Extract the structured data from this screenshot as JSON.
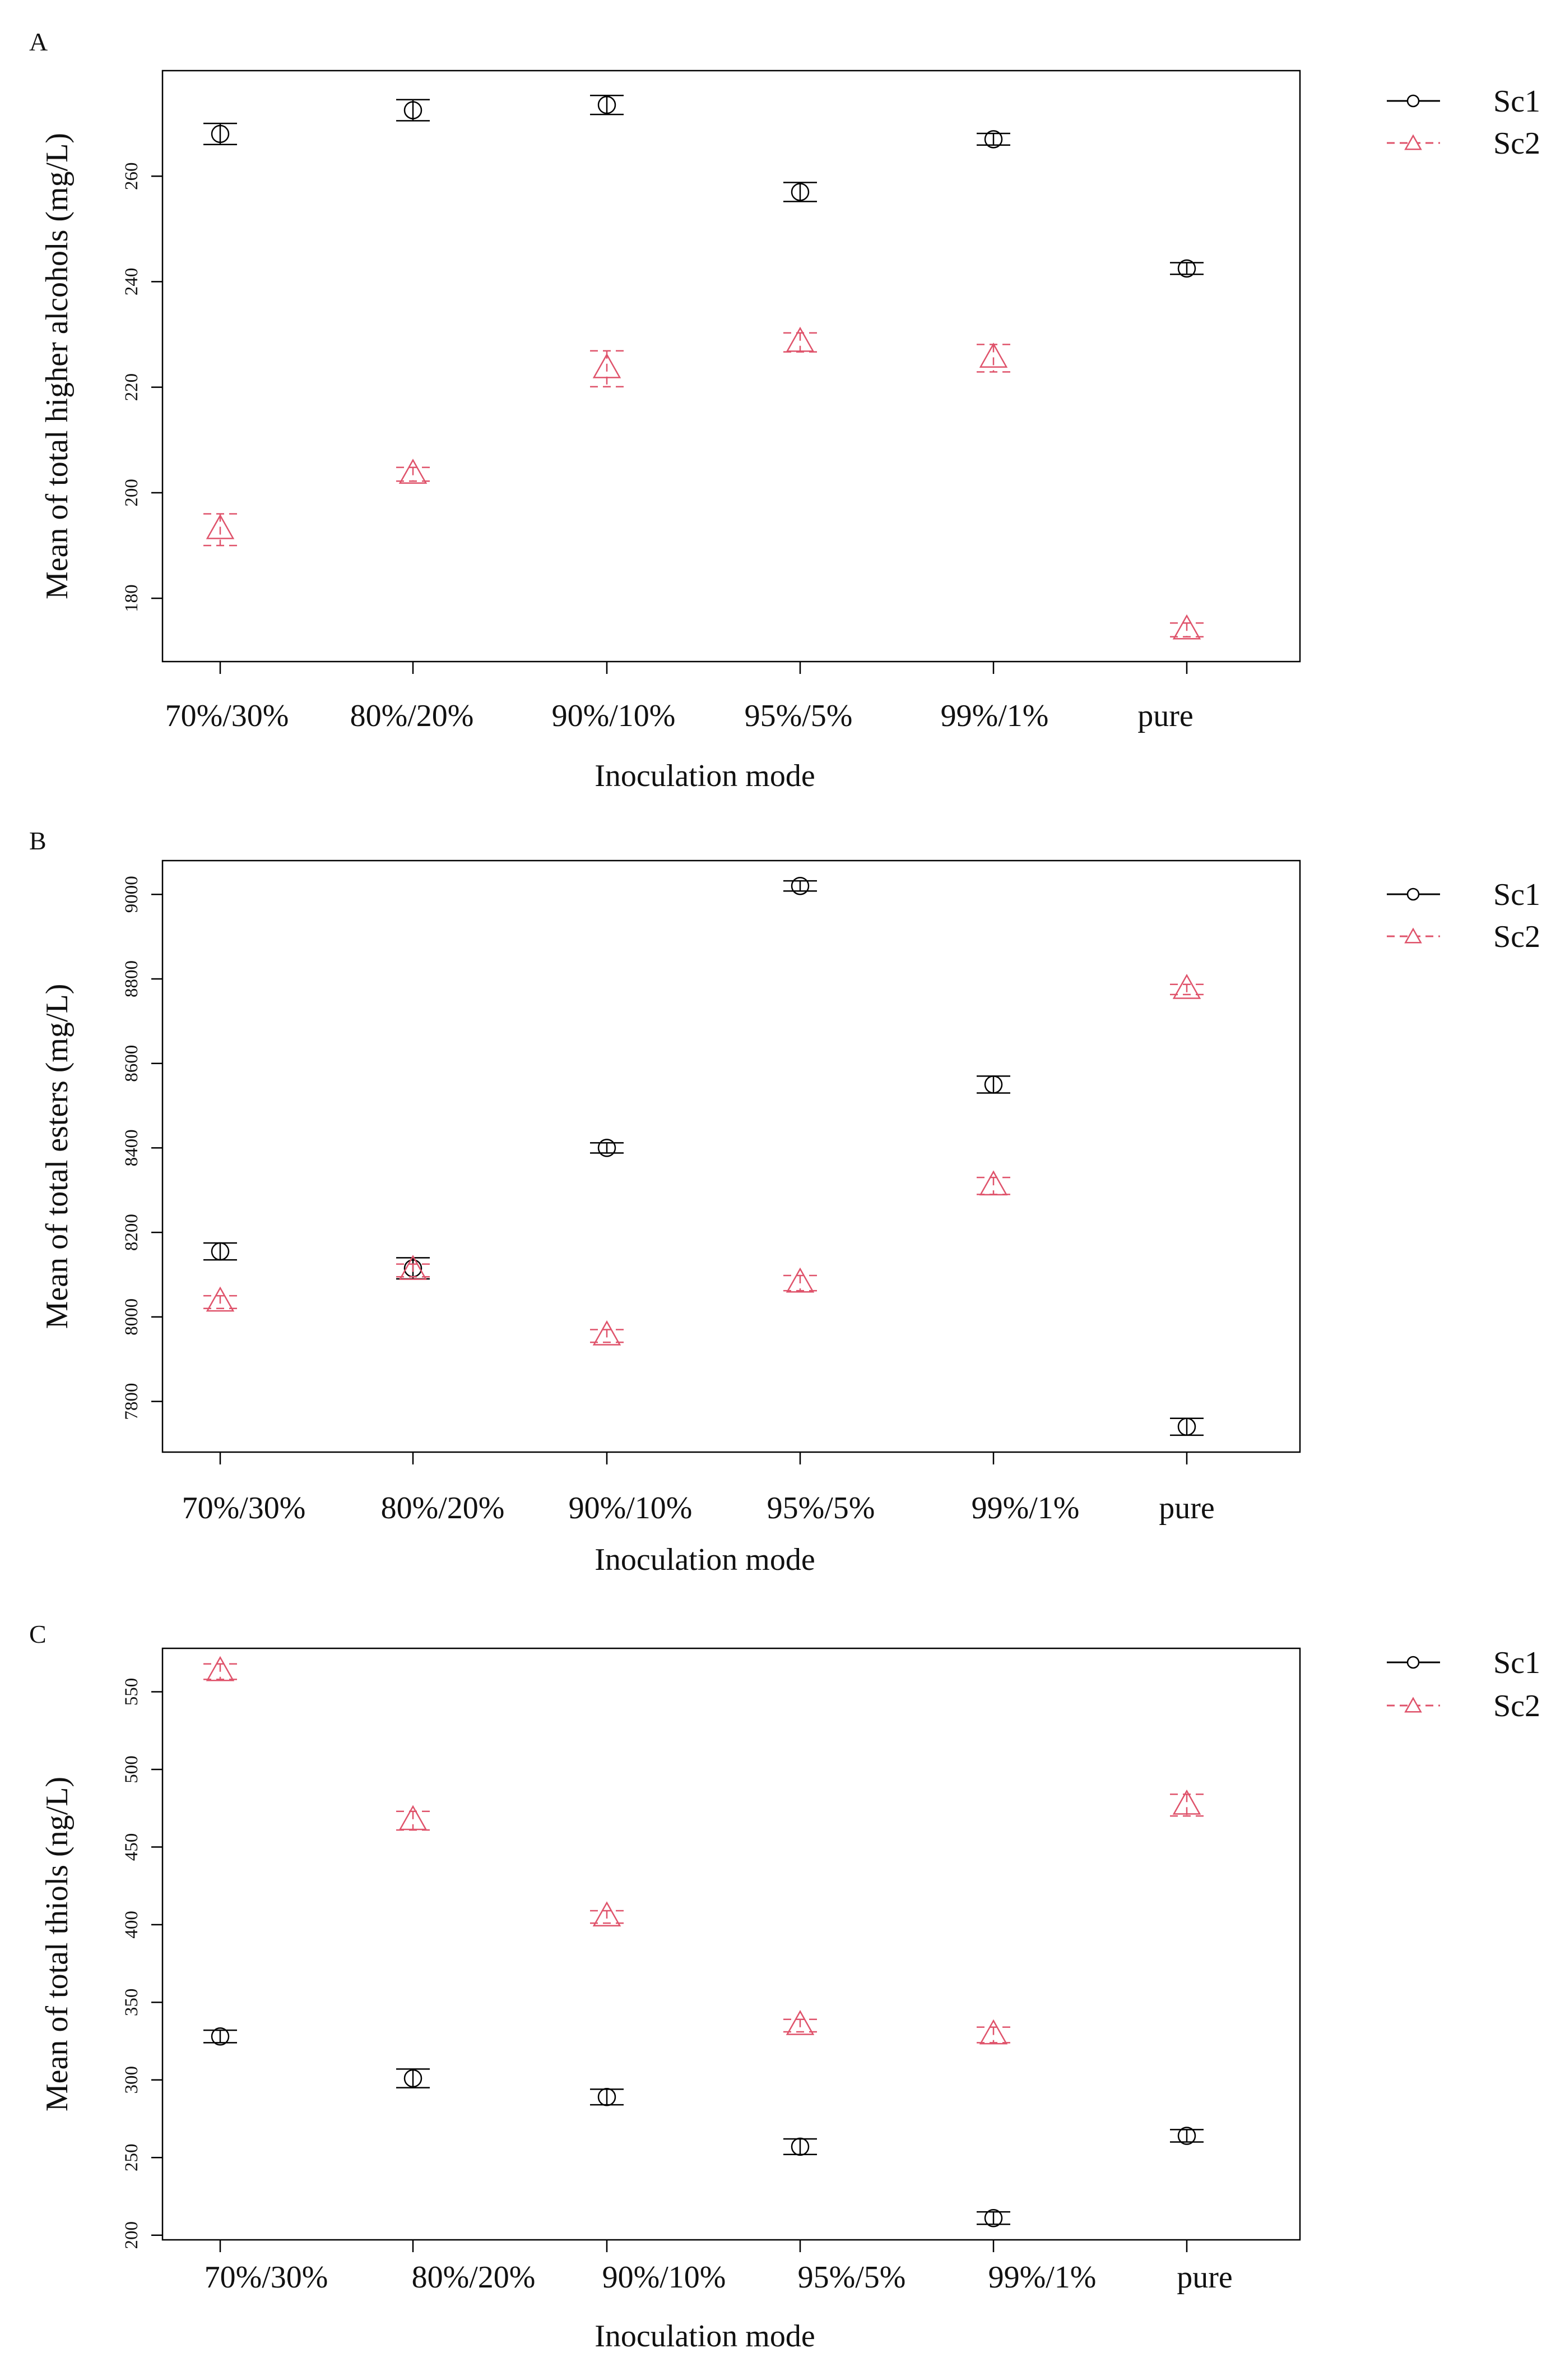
{
  "figure": {
    "xlabel": "Inoculation mode",
    "categories": [
      "70%/30%",
      "80%/20%",
      "90%/10%",
      "95%/5%",
      "99%/1%",
      "pure"
    ],
    "legend": [
      {
        "name": "Sc1",
        "color": "#000000",
        "marker": "circle",
        "line": "solid"
      },
      {
        "name": "Sc2",
        "color": "#df536b",
        "marker": "triangle",
        "line": "dashed"
      }
    ]
  },
  "chart_data": [
    {
      "panel": "A",
      "type": "scatter",
      "title": "",
      "xlabel": "Inoculation mode",
      "ylabel": "Mean of total higher alcohols (mg/L)",
      "categories": [
        "70%/30%",
        "80%/20%",
        "90%/10%",
        "95%/5%",
        "99%/1%",
        "pure"
      ],
      "ylim": [
        168,
        280
      ],
      "yticks": [
        180,
        200,
        220,
        240,
        260
      ],
      "legend_position": "right",
      "series": [
        {
          "name": "Sc1",
          "values": [
            268,
            272.5,
            273.5,
            257,
            267,
            242.5
          ],
          "errors": [
            2,
            2,
            1.8,
            1.8,
            1.1,
            1.1
          ]
        },
        {
          "name": "Sc2",
          "values": [
            193,
            203.5,
            223.5,
            228.5,
            225.5,
            174
          ],
          "errors": [
            3,
            1.3,
            3.4,
            1.8,
            2.6,
            1.3
          ]
        }
      ]
    },
    {
      "panel": "B",
      "type": "scatter",
      "title": "",
      "xlabel": "Inoculation mode",
      "ylabel": "Mean of total esters (mg/L)",
      "categories": [
        "70%/30%",
        "80%/20%",
        "90%/10%",
        "95%/5%",
        "99%/1%",
        "pure"
      ],
      "ylim": [
        7680,
        9080
      ],
      "yticks": [
        7800,
        8000,
        8200,
        8400,
        8600,
        8800,
        9000
      ],
      "legend_position": "right",
      "series": [
        {
          "name": "Sc1",
          "values": [
            8155,
            8115,
            8400,
            9020,
            8550,
            7740
          ],
          "errors": [
            20,
            25,
            12,
            12,
            20,
            20
          ]
        },
        {
          "name": "Sc2",
          "values": [
            8035,
            8110,
            7955,
            8080,
            8310,
            8775
          ],
          "errors": [
            15,
            15,
            15,
            18,
            20,
            12
          ]
        }
      ]
    },
    {
      "panel": "C",
      "type": "scatter",
      "title": "",
      "xlabel": "Inoculation mode",
      "ylabel": "Mean of total thiols (ng/L)",
      "categories": [
        "70%/30%",
        "80%/20%",
        "90%/10%",
        "95%/5%",
        "99%/1%",
        "pure"
      ],
      "ylim": [
        197,
        578
      ],
      "yticks": [
        200,
        250,
        300,
        350,
        400,
        450,
        500,
        550
      ],
      "legend_position": "right",
      "series": [
        {
          "name": "Sc1",
          "values": [
            328,
            301,
            289,
            257,
            211,
            264
          ],
          "errors": [
            4,
            6,
            5,
            5,
            4,
            4
          ]
        },
        {
          "name": "Sc2",
          "values": [
            563,
            467,
            405,
            335,
            329,
            477
          ],
          "errors": [
            5,
            6,
            4,
            4,
            5,
            7
          ]
        }
      ]
    }
  ]
}
